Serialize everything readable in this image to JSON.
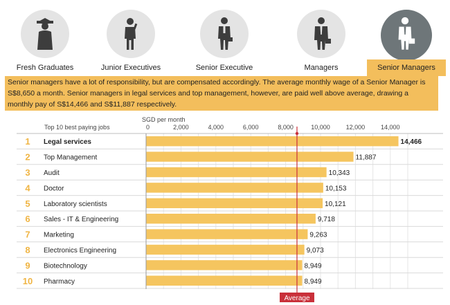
{
  "tabs": [
    {
      "label": "Fresh Graduates",
      "icon": "graduate-icon"
    },
    {
      "label": "Junior Executives",
      "icon": "junior-executive-icon"
    },
    {
      "label": "Senior Executive",
      "icon": "senior-executive-icon"
    },
    {
      "label": "Managers",
      "icon": "manager-icon"
    },
    {
      "label": "Senior Managers",
      "icon": "senior-manager-icon",
      "active": true
    }
  ],
  "description": "Senior managers have a lot of responsibility, but are compensated accordingly. The average monthly wage of a Senior Manager is S$8,650 a month. Senior managers in legal services and top management, however, are paid well above average, drawing a monthly pay of S$14,466 and S$11,887 respectively.",
  "colors": {
    "accent": "#f3be5c",
    "bar": "#f5c55f",
    "rank": "#f0b544",
    "average": "#c9303a",
    "active_circle": "#6e7679",
    "circle": "#e4e4e4"
  },
  "chart_data": {
    "type": "bar",
    "orientation": "horizontal",
    "title": "Top 10 best paying jobs",
    "xlabel": "SGD per month",
    "xlim": [
      0,
      15000
    ],
    "ticks": [
      0,
      2000,
      4000,
      6000,
      8000,
      10000,
      12000,
      14000
    ],
    "tick_labels": [
      "0",
      "2,000",
      "4,000",
      "6,000",
      "8,000",
      "10,000",
      "12,000",
      "14,000"
    ],
    "ranks": [
      "1",
      "2",
      "3",
      "4",
      "5",
      "6",
      "7",
      "8",
      "9",
      "10"
    ],
    "categories": [
      "Legal services",
      "Top Management",
      "Audit",
      "Doctor",
      "Laboratory scientists",
      "Sales - IT & Engineering",
      "Marketing",
      "Electronics Engineering",
      "Biotechnology",
      "Pharmacy"
    ],
    "values": [
      14466,
      11887,
      10343,
      10153,
      10121,
      9718,
      9263,
      9073,
      8949,
      8949
    ],
    "value_labels": [
      "14,466",
      "11,887",
      "10,343",
      "10,153",
      "10,121",
      "9,718",
      "9,263",
      "9,073",
      "8,949",
      "8,949"
    ],
    "highlight_first": true,
    "average": {
      "label": "Average",
      "value": 8650
    }
  }
}
